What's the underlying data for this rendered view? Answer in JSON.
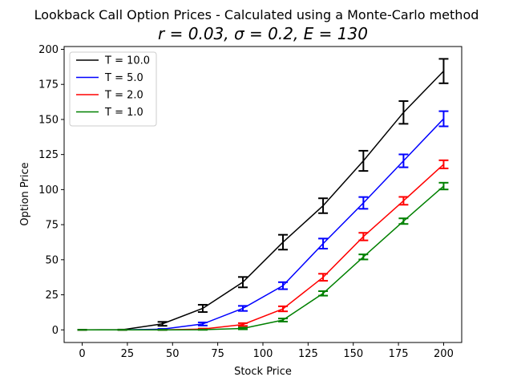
{
  "chart_data": {
    "type": "line",
    "title": "Lookback Call Option Prices - Calculated using a Monte-Carlo method",
    "subtitle": "r = 0.03, σ = 0.2, E = 130",
    "xlabel": "Stock Price",
    "ylabel": "Option Price",
    "xlim": [
      -10,
      210
    ],
    "ylim": [
      -9,
      202
    ],
    "xticks": [
      0,
      25,
      50,
      75,
      100,
      125,
      150,
      175,
      200
    ],
    "yticks": [
      0,
      25,
      50,
      75,
      100,
      125,
      150,
      175,
      200
    ],
    "x": [
      0,
      22.2,
      44.4,
      66.7,
      88.9,
      111.1,
      133.3,
      155.6,
      177.8,
      200
    ],
    "legend_position": "top-left",
    "series": [
      {
        "name": "T = 10.0",
        "color": "#000000",
        "values": [
          0,
          0.1,
          4.3,
          15.3,
          34.0,
          62.5,
          88.5,
          120.5,
          155.0,
          184.5
        ],
        "errors": [
          0,
          0.1,
          1.4,
          2.6,
          3.7,
          5.3,
          5.3,
          7.2,
          8.1,
          8.7
        ]
      },
      {
        "name": "T = 5.0",
        "color": "#0000ff",
        "values": [
          0,
          0,
          0.5,
          4.2,
          15.3,
          31.5,
          61.5,
          90.5,
          120.5,
          150.5
        ],
        "errors": [
          0,
          0,
          0.2,
          1.1,
          1.8,
          2.5,
          3.6,
          4.2,
          4.6,
          5.4
        ]
      },
      {
        "name": "T = 2.0",
        "color": "#ff0000",
        "values": [
          0,
          0,
          0,
          0.6,
          3.8,
          15.0,
          37.5,
          66.5,
          92.0,
          118.0
        ],
        "errors": [
          0,
          0,
          0,
          0.3,
          1.0,
          1.8,
          2.5,
          2.7,
          2.8,
          2.9
        ]
      },
      {
        "name": "T = 1.0",
        "color": "#008000",
        "values": [
          0,
          0,
          0,
          0.1,
          1.0,
          7.0,
          26.0,
          52.0,
          77.5,
          102.5
        ],
        "errors": [
          0,
          0,
          0,
          0.1,
          0.6,
          1.1,
          1.6,
          1.8,
          2.0,
          2.4
        ]
      }
    ]
  }
}
